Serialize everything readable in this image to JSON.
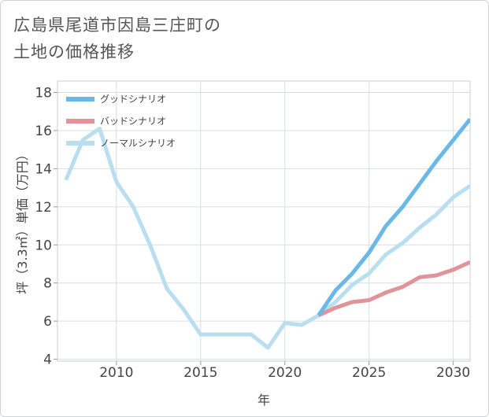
{
  "page": {
    "title_line1": "広島県尾道市因島三庄町の",
    "title_line2": "土地の価格推移"
  },
  "chart_data": {
    "type": "line",
    "title": "広島県尾道市因島三庄町の土地の価格推移",
    "xlabel": "年",
    "ylabel": "坪（3.3㎡）単価（万円）",
    "xlim": [
      2006.5,
      2031
    ],
    "ylim": [
      3.9,
      18.6
    ],
    "xticks": [
      2010,
      2015,
      2020,
      2025,
      2030
    ],
    "yticks": [
      4,
      6,
      8,
      10,
      12,
      14,
      16,
      18
    ],
    "grid": true,
    "legend_position": "top-left",
    "series": [
      {
        "name": "グッドシナリオ",
        "color": "#6ab8ea",
        "x": [
          2022,
          2023,
          2024,
          2025,
          2026,
          2027,
          2028,
          2029,
          2030,
          2031
        ],
        "values": [
          6.3,
          7.6,
          8.5,
          9.6,
          11.0,
          12.0,
          13.2,
          14.4,
          15.5,
          16.6
        ]
      },
      {
        "name": "バッドシナリオ",
        "color": "#e0949a",
        "x": [
          2022,
          2023,
          2024,
          2025,
          2026,
          2027,
          2028,
          2029,
          2030,
          2031
        ],
        "values": [
          6.3,
          6.7,
          7.0,
          7.1,
          7.5,
          7.8,
          8.3,
          8.4,
          8.7,
          9.1
        ]
      },
      {
        "name": "ノーマルシナリオ",
        "color": "#b8def0",
        "x": [
          2007,
          2008,
          2009,
          2010,
          2011,
          2012,
          2013,
          2014,
          2015,
          2016,
          2017,
          2018,
          2019,
          2020,
          2021,
          2022,
          2023,
          2024,
          2025,
          2026,
          2027,
          2028,
          2029,
          2030,
          2031
        ],
        "values": [
          13.4,
          15.5,
          16.1,
          13.3,
          12.0,
          10.0,
          7.7,
          6.6,
          5.3,
          5.3,
          5.3,
          5.3,
          4.6,
          5.9,
          5.8,
          6.3,
          7.0,
          7.9,
          8.5,
          9.5,
          10.1,
          10.9,
          11.6,
          12.5,
          13.1
        ]
      }
    ]
  }
}
